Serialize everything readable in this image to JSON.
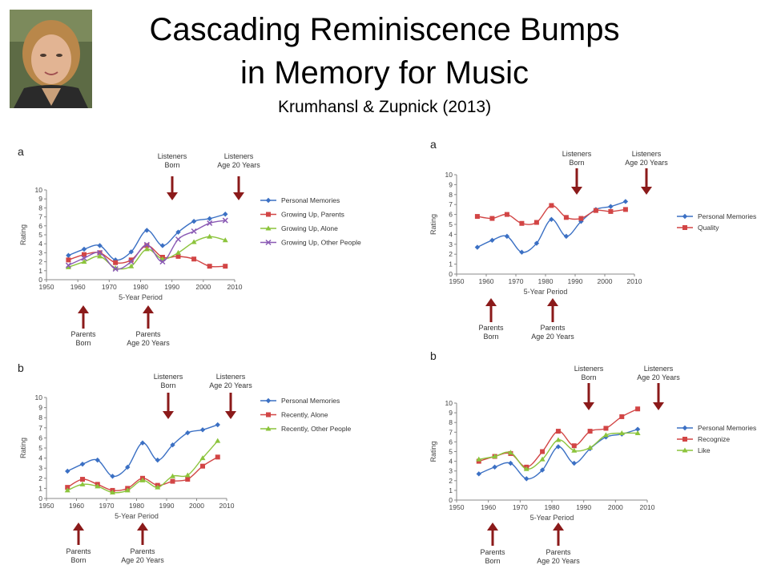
{
  "slide": {
    "title_line1": "Cascading Reminiscence Bumps",
    "title_line2": "in Memory for Music",
    "subtitle": "Krumhansl & Zupnick (2013)"
  },
  "colors": {
    "arrow": "#8b1a1a",
    "personal": "#3b70c4",
    "red": "#d24545",
    "green": "#8cc43c",
    "purple": "#8a5ab4"
  },
  "annotations": {
    "listeners_born": [
      "Listeners",
      "Born"
    ],
    "listeners_age20": [
      "Listeners",
      "Age 20 Years"
    ],
    "parents_born": [
      "Parents",
      "Born"
    ],
    "parents_age20": [
      "Parents",
      "Age 20 Years"
    ]
  },
  "chart_data": [
    {
      "panel": "a",
      "type": "line",
      "xlabel": "5-Year Period",
      "ylabel": "Rating",
      "xlim": [
        1950,
        2010
      ],
      "ylim": [
        0,
        10
      ],
      "xticks": [
        1950,
        1960,
        1970,
        1980,
        1990,
        2000,
        2010
      ],
      "yticks": [
        0,
        1,
        2,
        3,
        4,
        5,
        6,
        7,
        8,
        9,
        10
      ],
      "legend": "right",
      "grid": false,
      "x": [
        1957,
        1962,
        1967,
        1972,
        1977,
        1982,
        1987,
        1992,
        1997,
        2002,
        2007
      ],
      "series": [
        {
          "name": "Personal Memories",
          "marker": "diamond",
          "color": "#3b70c4",
          "values": [
            2.7,
            3.4,
            3.8,
            2.2,
            3.1,
            5.5,
            3.8,
            5.3,
            6.5,
            6.8,
            7.3
          ]
        },
        {
          "name": "Growing Up, Parents",
          "marker": "square",
          "color": "#d24545",
          "values": [
            2.2,
            2.8,
            3.0,
            1.9,
            2.2,
            3.8,
            2.5,
            2.6,
            2.3,
            1.5,
            1.5
          ]
        },
        {
          "name": "Growing Up, Alone",
          "marker": "triangle",
          "color": "#8cc43c",
          "values": [
            1.4,
            2.0,
            2.6,
            1.3,
            1.5,
            3.4,
            2.3,
            3.0,
            4.2,
            4.8,
            4.4
          ]
        },
        {
          "name": "Growing Up, Other People",
          "marker": "x",
          "color": "#8a5ab4",
          "values": [
            1.6,
            2.4,
            3.0,
            1.2,
            2.0,
            3.9,
            2.0,
            4.5,
            5.4,
            6.3,
            6.6
          ]
        }
      ]
    },
    {
      "panel": "b",
      "type": "line",
      "xlabel": "5-Year Period",
      "ylabel": "Rating",
      "xlim": [
        1950,
        2010
      ],
      "ylim": [
        0,
        10
      ],
      "xticks": [
        1950,
        1960,
        1970,
        1980,
        1990,
        2000,
        2010
      ],
      "yticks": [
        0,
        1,
        2,
        3,
        4,
        5,
        6,
        7,
        8,
        9,
        10
      ],
      "legend": "right",
      "grid": false,
      "x": [
        1957,
        1962,
        1967,
        1972,
        1977,
        1982,
        1987,
        1992,
        1997,
        2002,
        2007
      ],
      "series": [
        {
          "name": "Personal Memories",
          "marker": "diamond",
          "color": "#3b70c4",
          "values": [
            2.7,
            3.4,
            3.8,
            2.2,
            3.1,
            5.5,
            3.8,
            5.3,
            6.5,
            6.8,
            7.3
          ]
        },
        {
          "name": "Recently, Alone",
          "marker": "square",
          "color": "#d24545",
          "values": [
            1.1,
            1.9,
            1.4,
            0.8,
            1.0,
            2.0,
            1.3,
            1.7,
            1.9,
            3.2,
            4.1
          ]
        },
        {
          "name": "Recently, Other People",
          "marker": "triangle",
          "color": "#8cc43c",
          "values": [
            0.8,
            1.4,
            1.2,
            0.6,
            0.8,
            1.8,
            1.1,
            2.2,
            2.3,
            4.0,
            5.7
          ]
        }
      ]
    },
    {
      "panel": "a",
      "type": "line",
      "xlabel": "5-Year Period",
      "ylabel": "Rating",
      "xlim": [
        1950,
        2010
      ],
      "ylim": [
        0,
        10
      ],
      "xticks": [
        1950,
        1960,
        1970,
        1980,
        1990,
        2000,
        2010
      ],
      "yticks": [
        0,
        1,
        2,
        3,
        4,
        5,
        6,
        7,
        8,
        9,
        10
      ],
      "legend": "right",
      "grid": false,
      "x": [
        1957,
        1962,
        1967,
        1972,
        1977,
        1982,
        1987,
        1992,
        1997,
        2002,
        2007
      ],
      "series": [
        {
          "name": "Personal Memories",
          "marker": "diamond",
          "color": "#3b70c4",
          "values": [
            2.7,
            3.4,
            3.8,
            2.2,
            3.1,
            5.5,
            3.8,
            5.3,
            6.5,
            6.8,
            7.3
          ]
        },
        {
          "name": "Quality",
          "marker": "square",
          "color": "#d24545",
          "values": [
            5.8,
            5.6,
            6.0,
            5.1,
            5.2,
            6.9,
            5.7,
            5.6,
            6.4,
            6.3,
            6.5
          ]
        }
      ]
    },
    {
      "panel": "b",
      "type": "line",
      "xlabel": "5-Year Period",
      "ylabel": "Rating",
      "xlim": [
        1950,
        2010
      ],
      "ylim": [
        0,
        10
      ],
      "xticks": [
        1950,
        1960,
        1970,
        1980,
        1990,
        2000,
        2010
      ],
      "yticks": [
        0,
        1,
        2,
        3,
        4,
        5,
        6,
        7,
        8,
        9,
        10
      ],
      "legend": "right",
      "grid": false,
      "x": [
        1957,
        1962,
        1967,
        1972,
        1977,
        1982,
        1987,
        1992,
        1997,
        2002,
        2007
      ],
      "series": [
        {
          "name": "Personal Memories",
          "marker": "diamond",
          "color": "#3b70c4",
          "values": [
            2.7,
            3.4,
            3.8,
            2.2,
            3.1,
            5.5,
            3.8,
            5.3,
            6.5,
            6.8,
            7.3
          ]
        },
        {
          "name": "Recognize",
          "marker": "square",
          "color": "#d24545",
          "values": [
            4.0,
            4.5,
            4.8,
            3.4,
            5.0,
            7.1,
            5.6,
            7.1,
            7.4,
            8.6,
            9.4
          ]
        },
        {
          "name": "Like",
          "marker": "triangle",
          "color": "#8cc43c",
          "values": [
            4.2,
            4.5,
            4.9,
            3.2,
            4.2,
            6.2,
            5.1,
            5.4,
            6.7,
            6.9,
            6.9
          ]
        }
      ]
    }
  ]
}
